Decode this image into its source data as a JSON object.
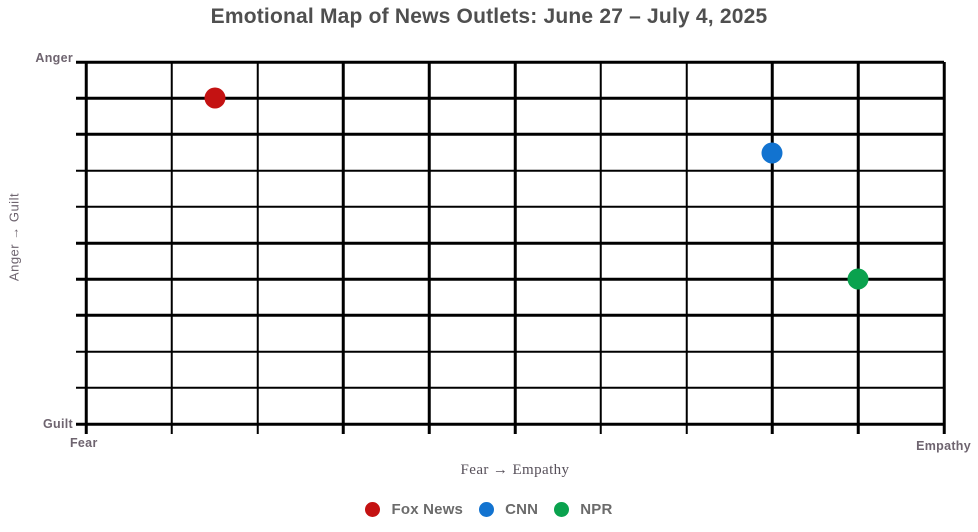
{
  "title": "Emotional Map of News Outlets: June 27 – July 4, 2025",
  "chart_data": {
    "type": "scatter",
    "title": "Emotional Map of News Outlets: June 27 – July 4, 2025",
    "xlabel": "Fear → Empathy",
    "ylabel": "Anger → Guilt",
    "corner_labels": {
      "top_left": "Anger",
      "bottom_left": "Guilt",
      "x_start": "Fear",
      "x_end": "Empathy"
    },
    "xlim": [
      0,
      10
    ],
    "ylim": [
      0,
      10
    ],
    "grid": {
      "cols": 10,
      "rows": 10,
      "on": true,
      "color": "#000000"
    },
    "legend_position": "bottom-center",
    "series": [
      {
        "name": "Fox News",
        "color": "#c41212",
        "points": [
          {
            "x": 1.5,
            "y": 9.0
          }
        ]
      },
      {
        "name": "CNN",
        "color": "#1273d0",
        "points": [
          {
            "x": 8.0,
            "y": 7.5
          }
        ]
      },
      {
        "name": "NPR",
        "color": "#0aa24e",
        "points": [
          {
            "x": 9.0,
            "y": 4.0
          }
        ]
      }
    ]
  }
}
